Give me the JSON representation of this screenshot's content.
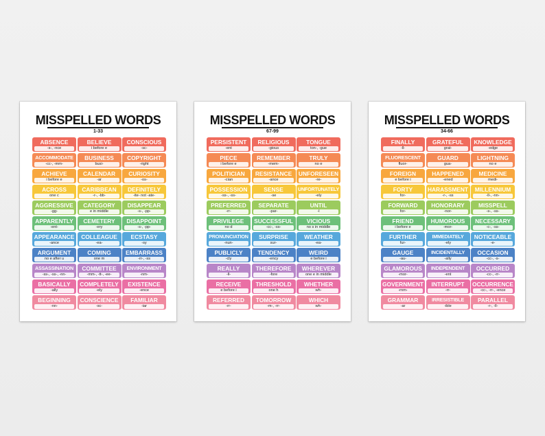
{
  "colors": {
    "rows": [
      "#f06b5d",
      "#f58a55",
      "#f8a73e",
      "#f7c73a",
      "#9ccb5e",
      "#6dc07a",
      "#57a8dc",
      "#4c82c6",
      "#b886c8",
      "#ea6fa4",
      "#f08aa0"
    ]
  },
  "posters": [
    {
      "title": "MISSPELLED WORDS",
      "range": "1-33",
      "cells": [
        {
          "word": "ABSENCE",
          "hint": "-s-, -nce"
        },
        {
          "word": "BELIEVE",
          "hint": "i before e"
        },
        {
          "word": "CONSCIOUS",
          "hint": "-sc-"
        },
        {
          "word": "ACCOMMODATE",
          "hint": "-cc-, -mm-"
        },
        {
          "word": "BUSINESS",
          "hint": "busi-"
        },
        {
          "word": "COPYRIGHT",
          "hint": "-right"
        },
        {
          "word": "ACHIEVE",
          "hint": "i before e"
        },
        {
          "word": "CALENDAR",
          "hint": "-ar"
        },
        {
          "word": "CURIOSITY",
          "hint": "-os-"
        },
        {
          "word": "ACROSS",
          "hint": "one c"
        },
        {
          "word": "CARIBBEAN",
          "hint": "-r-, -bb-"
        },
        {
          "word": "DEFINITELY",
          "hint": "-ite- not -ate-"
        },
        {
          "word": "AGGRESSIVE",
          "hint": "-gg-"
        },
        {
          "word": "CATEGORY",
          "hint": "e in middle"
        },
        {
          "word": "DISAPPEAR",
          "hint": "-s-, -pp-"
        },
        {
          "word": "APPARENTLY",
          "hint": "-ent-"
        },
        {
          "word": "CEMETERY",
          "hint": "-ery"
        },
        {
          "word": "DISAPPOINT",
          "hint": "-s-, -pp-"
        },
        {
          "word": "APPEARANCE",
          "hint": "-ance"
        },
        {
          "word": "COLLEAGUE",
          "hint": "-ea-"
        },
        {
          "word": "ECSTASY",
          "hint": "-sy"
        },
        {
          "word": "ARGUMENT",
          "hint": "no e after u"
        },
        {
          "word": "COMING",
          "hint": "one m"
        },
        {
          "word": "EMBARRASS",
          "hint": "-rr-, -ss"
        },
        {
          "word": "ASSASSINATION",
          "hint": "-ss-, -ss-, -nn-"
        },
        {
          "word": "COMMITTEE",
          "hint": "-mm-, -tt-, -ee-"
        },
        {
          "word": "ENVIRONMENT",
          "hint": "-nm-"
        },
        {
          "word": "BASICALLY",
          "hint": "-ally"
        },
        {
          "word": "COMPLETELY",
          "hint": "-ely"
        },
        {
          "word": "EXISTENCE",
          "hint": "-ence"
        },
        {
          "word": "BEGINNING",
          "hint": "-nn-"
        },
        {
          "word": "CONSCIENCE",
          "hint": "-sc-"
        },
        {
          "word": "FAMILIAR",
          "hint": "-iar"
        }
      ]
    },
    {
      "title": "MISSPELLED WORDS",
      "range": "67-99",
      "cells": [
        {
          "word": "PERSISTENT",
          "hint": "-ent"
        },
        {
          "word": "RELIGIOUS",
          "hint": "-gious"
        },
        {
          "word": "TONGUE",
          "hint": "ton-, -gue"
        },
        {
          "word": "PIECE",
          "hint": "i before e"
        },
        {
          "word": "REMEMBER",
          "hint": "-mem-"
        },
        {
          "word": "TRULY",
          "hint": "no e"
        },
        {
          "word": "POLITICIAN",
          "hint": "-cian"
        },
        {
          "word": "RESISTANCE",
          "hint": "-ance"
        },
        {
          "word": "UNFORESEEN",
          "hint": "-re-"
        },
        {
          "word": "POSSESSION",
          "hint": "-ss-, -ss-"
        },
        {
          "word": "SENSE",
          "hint": "-se"
        },
        {
          "word": "UNFORTUNATELY",
          "hint": "-ely"
        },
        {
          "word": "PREFERRED",
          "hint": "-rr-"
        },
        {
          "word": "SEPARATE",
          "hint": "-par-"
        },
        {
          "word": "UNTIL",
          "hint": "-l"
        },
        {
          "word": "PRIVILEGE",
          "hint": "no d"
        },
        {
          "word": "SUCCESSFUL",
          "hint": "-cc-, -ss-"
        },
        {
          "word": "VICIOUS",
          "hint": "no s in middle"
        },
        {
          "word": "PRONUNCIATION",
          "hint": "-nun-"
        },
        {
          "word": "SURPRISE",
          "hint": "sur-"
        },
        {
          "word": "WEATHER",
          "hint": "-ea-"
        },
        {
          "word": "PUBLICLY",
          "hint": "-cly"
        },
        {
          "word": "TENDENCY",
          "hint": "-ency"
        },
        {
          "word": "WEIRD",
          "hint": "e before i"
        },
        {
          "word": "REALLY",
          "hint": "-ll-"
        },
        {
          "word": "THEREFORE",
          "hint": "-fore"
        },
        {
          "word": "WHEREVER",
          "hint": "one e in middle"
        },
        {
          "word": "RECEIVE",
          "hint": "e before i"
        },
        {
          "word": "THRESHOLD",
          "hint": "one h"
        },
        {
          "word": "WHETHER",
          "hint": "wh-"
        },
        {
          "word": "REFERRED",
          "hint": "-rr-"
        },
        {
          "word": "TOMORROW",
          "hint": "-m-, -rr-"
        },
        {
          "word": "WHICH",
          "hint": "wh-"
        }
      ]
    },
    {
      "title": "MISSPELLED WORDS",
      "range": "34-66",
      "cells": [
        {
          "word": "FINALLY",
          "hint": "-ll-"
        },
        {
          "word": "GRATEFUL",
          "hint": "grat-"
        },
        {
          "word": "KNOWLEDGE",
          "hint": "-edge"
        },
        {
          "word": "FLUORESCENT",
          "hint": "fluor-"
        },
        {
          "word": "GUARD",
          "hint": "gua-"
        },
        {
          "word": "LIGHTNING",
          "hint": "no e"
        },
        {
          "word": "FOREIGN",
          "hint": "e before i"
        },
        {
          "word": "HAPPENED",
          "hint": "-ened"
        },
        {
          "word": "MEDICINE",
          "hint": "medi-"
        },
        {
          "word": "FORTY",
          "hint": "for-"
        },
        {
          "word": "HARASSMENT",
          "hint": "-r-, -ss"
        },
        {
          "word": "MILLENNIUM",
          "hint": "-ll-, -nn-"
        },
        {
          "word": "FORWARD",
          "hint": "for-"
        },
        {
          "word": "HONORARY",
          "hint": "-nor-"
        },
        {
          "word": "MISSPELL",
          "hint": "-s-, -ss-"
        },
        {
          "word": "FRIEND",
          "hint": "i before e"
        },
        {
          "word": "HUMOROUS",
          "hint": "-mor-"
        },
        {
          "word": "NECESSARY",
          "hint": "-c-, -ss-"
        },
        {
          "word": "FURTHER",
          "hint": "fur-"
        },
        {
          "word": "IMMEDIATELY",
          "hint": "-ely"
        },
        {
          "word": "NOTICEABLE",
          "hint": "-e-"
        },
        {
          "word": "GAUGE",
          "hint": "-au-"
        },
        {
          "word": "INCIDENTALLY",
          "hint": "-ally"
        },
        {
          "word": "OCCASION",
          "hint": "-cc-, -s-"
        },
        {
          "word": "GLAMOROUS",
          "hint": "-mor-"
        },
        {
          "word": "INDEPENDENT",
          "hint": "-ent"
        },
        {
          "word": "OCCURRED",
          "hint": "-cc-, -rr-"
        },
        {
          "word": "GOVERNMENT",
          "hint": "-rnm-"
        },
        {
          "word": "INTERRUPT",
          "hint": "-rr-"
        },
        {
          "word": "OCCURRENCE",
          "hint": "-cc-, -rr-, -ence"
        },
        {
          "word": "GRAMMAR",
          "hint": "-ar"
        },
        {
          "word": "IRRESISTIBLE",
          "hint": "-ible"
        },
        {
          "word": "PARALLEL",
          "hint": "-r-, -ll-"
        }
      ]
    }
  ]
}
